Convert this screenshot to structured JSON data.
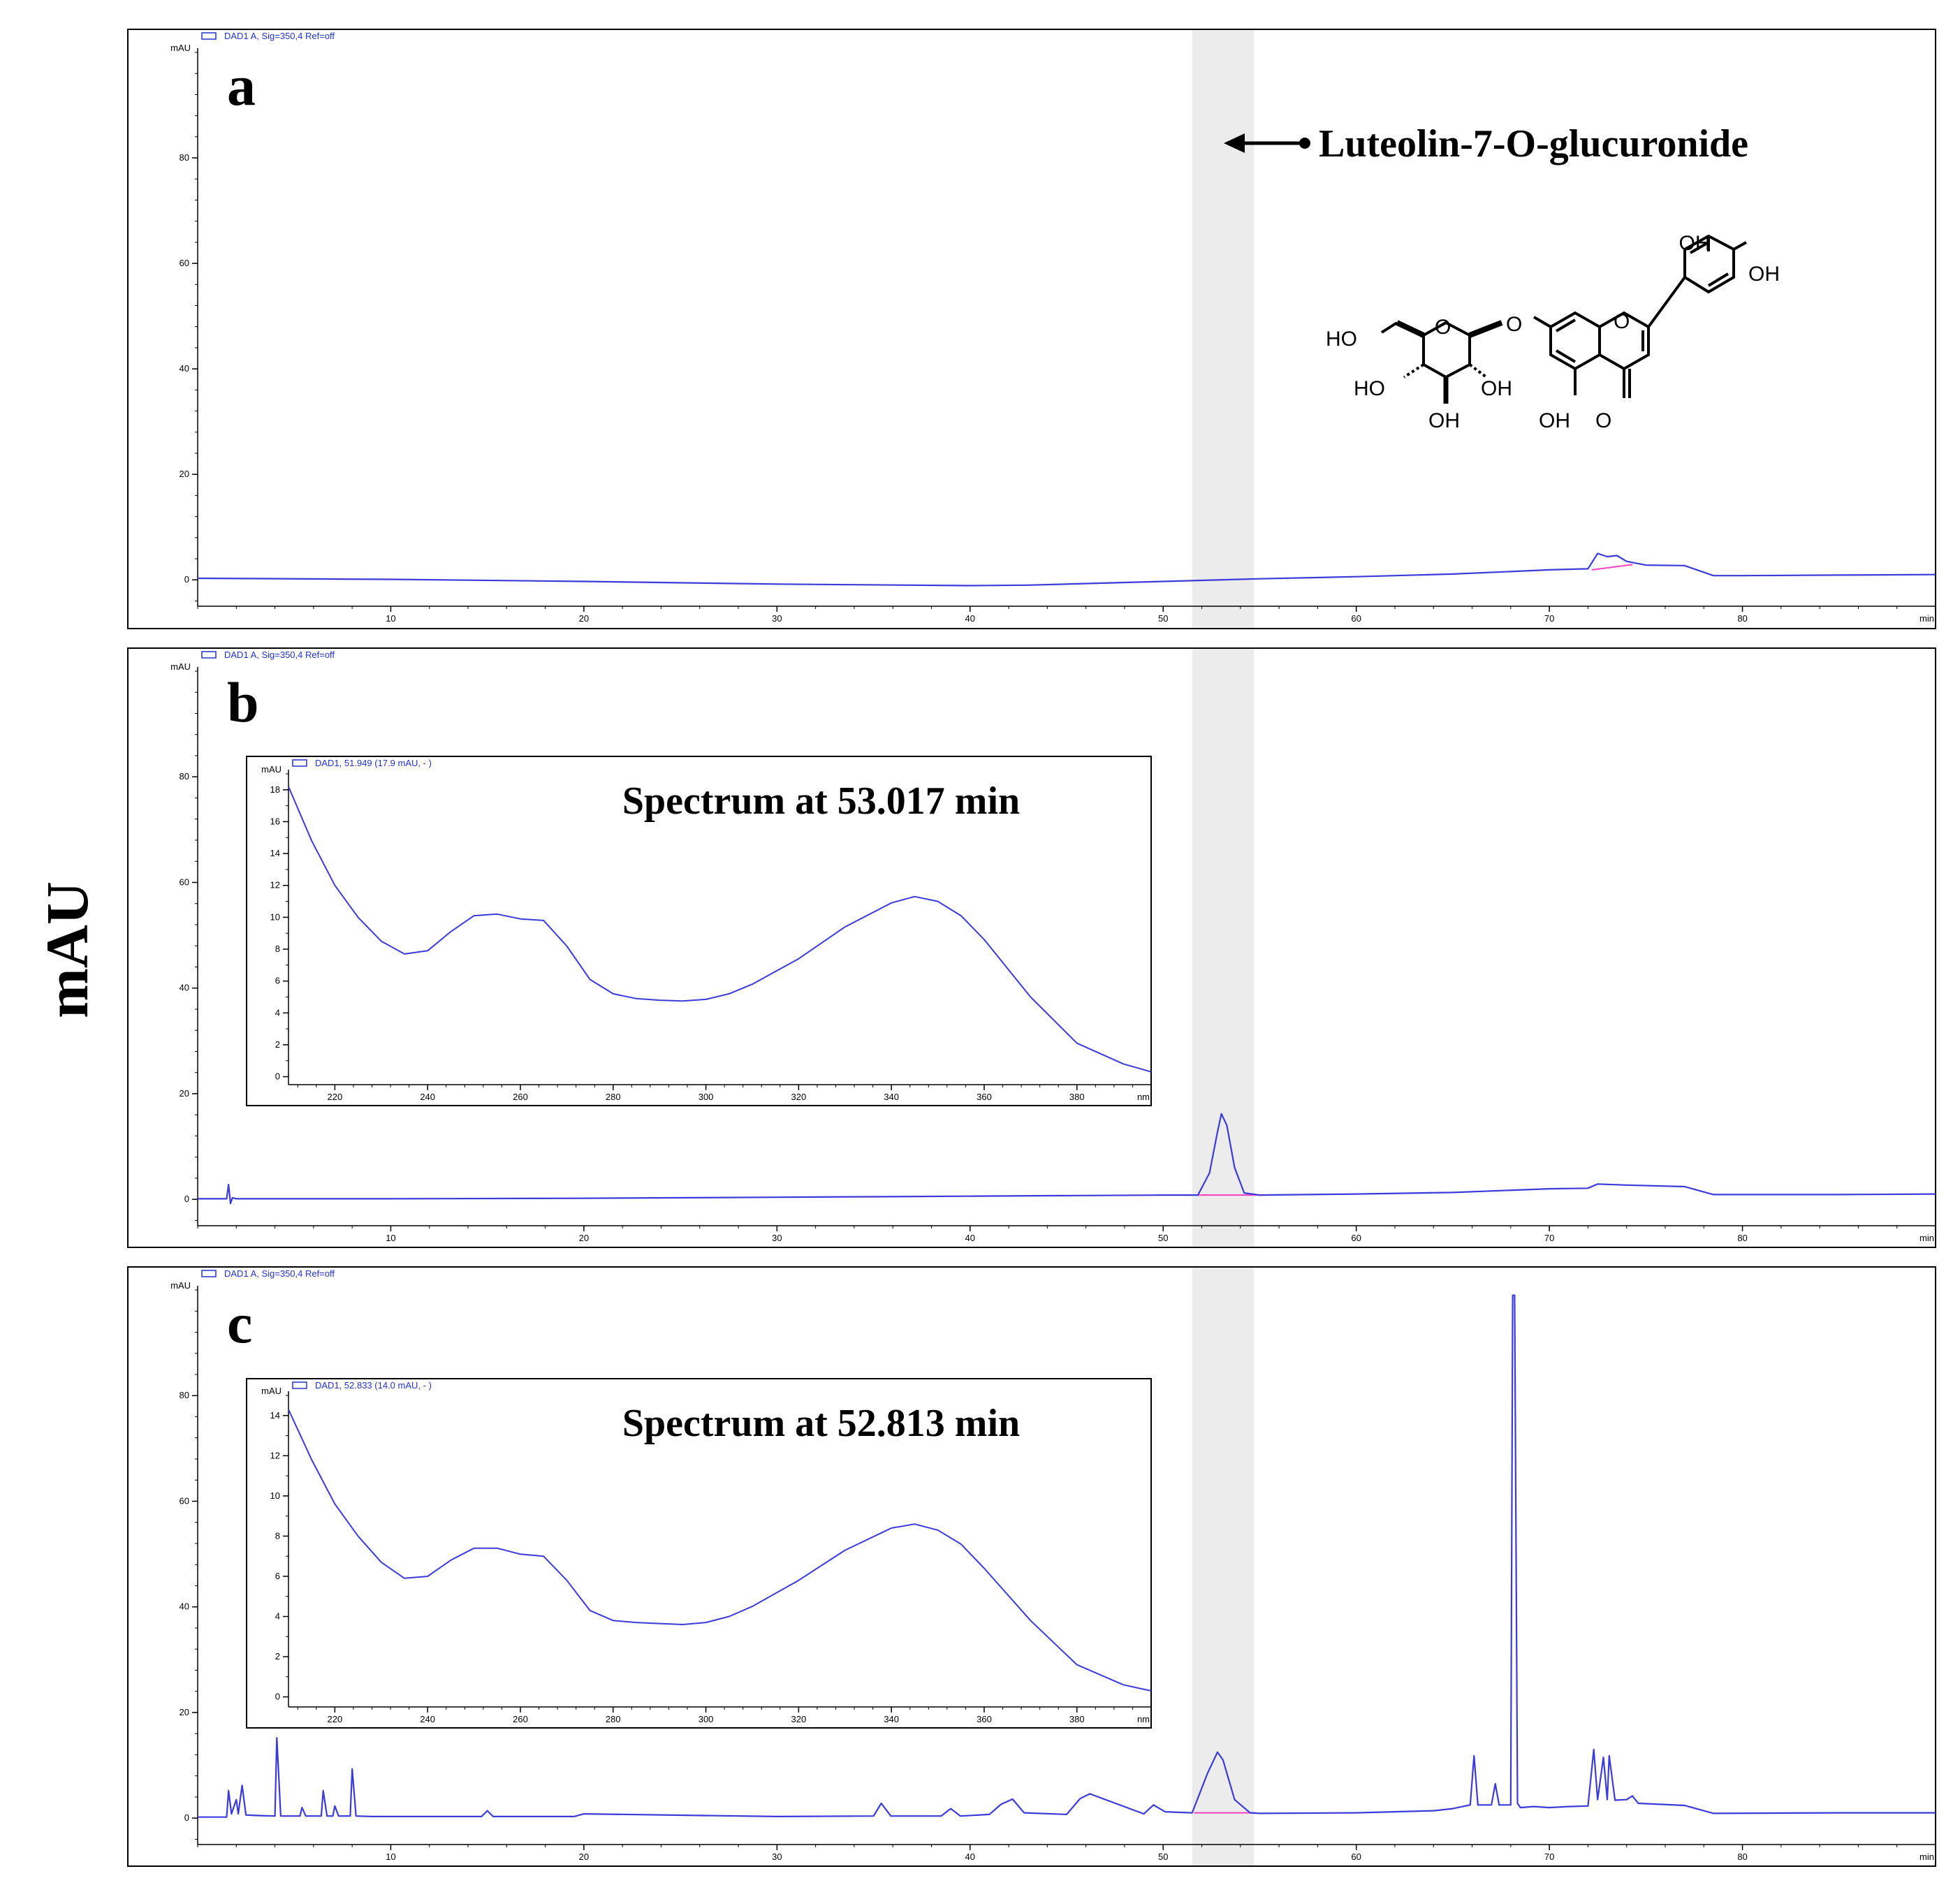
{
  "figure": {
    "y_axis_label": "mAU",
    "compound_label": "Luteolin-7-O-glucuronide",
    "structure_labels": [
      "OH",
      "OH",
      "HO",
      "O",
      "O",
      "O",
      "HO",
      "OH",
      "OH",
      "OH",
      "O"
    ],
    "colors": {
      "trace": "#3b3bdc",
      "header": "#2233cc",
      "baseline": "#ff3fbf",
      "highlight_band": "#ececec",
      "frame": "#000000"
    }
  },
  "chart_data": [
    {
      "type": "line",
      "panel": "a",
      "header": "DAD1 A, Sig=350,4 Ref=off",
      "ylabel": "mAU",
      "xlabel": "min",
      "xlim": [
        0,
        90
      ],
      "ylim": [
        -5,
        100
      ],
      "xticks": [
        10,
        20,
        30,
        40,
        50,
        60,
        70,
        80
      ],
      "yticks": [
        0,
        20,
        40,
        60,
        80
      ],
      "highlight_range": [
        51.5,
        54.7
      ],
      "series": [
        {
          "x": [
            0,
            10,
            20,
            30,
            40,
            43,
            50,
            55,
            60,
            65,
            70,
            72,
            72.5,
            73,
            73.5,
            74,
            75,
            77,
            78.5,
            80,
            85,
            90
          ],
          "y": [
            0.3,
            0.1,
            -0.3,
            -0.8,
            -1.1,
            -1.0,
            -0.3,
            0.2,
            0.6,
            1.1,
            1.9,
            2.1,
            5.0,
            4.4,
            4.6,
            3.5,
            2.8,
            2.7,
            0.8,
            0.8,
            0.9,
            1.0
          ]
        }
      ],
      "baseline_segments": [
        [
          72.2,
          1.9,
          74.3,
          2.9
        ]
      ]
    },
    {
      "type": "line",
      "panel": "b",
      "header": "DAD1 A, Sig=350,4 Ref=off",
      "ylabel": "mAU",
      "xlabel": "min",
      "xlim": [
        0,
        90
      ],
      "ylim": [
        -5,
        100
      ],
      "xticks": [
        10,
        20,
        30,
        40,
        50,
        60,
        70,
        80
      ],
      "yticks": [
        0,
        20,
        40,
        60,
        80
      ],
      "highlight_range": [
        51.5,
        54.7
      ],
      "series": [
        {
          "x": [
            0,
            1.5,
            1.6,
            1.7,
            1.8,
            2.0,
            5,
            10,
            20,
            30,
            40,
            50,
            51.8,
            52.4,
            52.8,
            53.017,
            53.3,
            53.7,
            54.2,
            55,
            60,
            65,
            70,
            72,
            72.5,
            74,
            77,
            78.5,
            85,
            90
          ],
          "y": [
            0.1,
            0.1,
            2.8,
            -0.8,
            0.3,
            0.1,
            0.1,
            0.1,
            0.2,
            0.4,
            0.6,
            0.8,
            0.8,
            5.0,
            12.5,
            16.2,
            14.0,
            6.0,
            1.2,
            0.8,
            1.0,
            1.3,
            2.0,
            2.1,
            2.9,
            2.7,
            2.4,
            0.9,
            0.9,
            1.0
          ]
        }
      ],
      "baseline_segments": [
        [
          51.8,
          0.8,
          55.2,
          0.8
        ]
      ]
    },
    {
      "type": "line",
      "panel": "c",
      "header": "DAD1 A, Sig=350,4 Ref=off",
      "ylabel": "mAU",
      "xlabel": "min",
      "xlim": [
        0,
        90
      ],
      "ylim": [
        -5,
        100
      ],
      "xticks": [
        10,
        20,
        30,
        40,
        50,
        60,
        70,
        80
      ],
      "yticks": [
        0,
        20,
        40,
        60,
        80
      ],
      "highlight_range": [
        51.5,
        54.7
      ],
      "series": [
        {
          "x": [
            0,
            1.5,
            1.6,
            1.75,
            2.0,
            2.1,
            2.3,
            2.5,
            3.0,
            4.0,
            4.1,
            4.3,
            5.3,
            5.4,
            5.6,
            6.4,
            6.5,
            6.7,
            7.0,
            7.1,
            7.3,
            7.9,
            8.0,
            8.2,
            9,
            14.7,
            15,
            15.3,
            19.5,
            20,
            30,
            35,
            35.4,
            35.9,
            38.5,
            39,
            39.5,
            41,
            41.6,
            42.2,
            42.8,
            45,
            45.7,
            46.2,
            49,
            49.5,
            50.1,
            51.5,
            52.3,
            52.813,
            53.1,
            53.7,
            54.5,
            55,
            60,
            64,
            65,
            65.9,
            66.1,
            66.3,
            67,
            67.2,
            67.4,
            68.0,
            68.1,
            68.2,
            68.35,
            68.5,
            69.2,
            70,
            71,
            72.0,
            72.3,
            72.5,
            72.8,
            73.0,
            73.1,
            73.4,
            74,
            74.3,
            74.6,
            77,
            78.5,
            85,
            90
          ],
          "y": [
            0.2,
            0.2,
            5.2,
            0.8,
            3.5,
            0.8,
            6.2,
            0.6,
            0.5,
            0.4,
            15.2,
            0.4,
            0.4,
            2.0,
            0.4,
            0.4,
            5.2,
            0.4,
            0.4,
            2.3,
            0.4,
            0.4,
            9.3,
            0.4,
            0.3,
            0.3,
            1.4,
            0.3,
            0.3,
            0.8,
            0.3,
            0.4,
            2.8,
            0.4,
            0.4,
            1.8,
            0.4,
            0.7,
            2.6,
            3.6,
            1.0,
            0.7,
            3.7,
            4.6,
            0.8,
            2.5,
            1.2,
            1.0,
            8.5,
            12.5,
            11.0,
            3.5,
            1.0,
            0.9,
            1.0,
            1.4,
            1.8,
            2.5,
            11.8,
            2.5,
            2.5,
            6.5,
            2.5,
            2.5,
            99.0,
            99.0,
            2.8,
            2.0,
            2.2,
            2.0,
            2.2,
            2.3,
            13.0,
            3.5,
            11.5,
            3.5,
            11.8,
            3.4,
            3.5,
            4.2,
            2.8,
            2.4,
            0.9,
            1.0,
            1.0
          ]
        }
      ],
      "baseline_segments": [
        [
          51.6,
          1.0,
          54.8,
          1.0
        ]
      ]
    },
    {
      "type": "line",
      "panel": "b-inset",
      "header": "DAD1, 51.949 (17.9 mAU, - )",
      "title": "Spectrum at 53.017 min",
      "ylabel": "mAU",
      "xlabel": "nm",
      "xlim": [
        210,
        396
      ],
      "ylim": [
        -0.5,
        19
      ],
      "xticks": [
        220,
        240,
        260,
        280,
        300,
        320,
        340,
        360,
        380
      ],
      "yticks": [
        0,
        2,
        4,
        6,
        8,
        10,
        12,
        14,
        16,
        18
      ],
      "series": [
        {
          "x": [
            210,
            215,
            220,
            225,
            230,
            235,
            240,
            245,
            250,
            255,
            260,
            265,
            270,
            275,
            280,
            285,
            290,
            295,
            300,
            305,
            310,
            320,
            330,
            340,
            345,
            350,
            355,
            360,
            370,
            380,
            390,
            396
          ],
          "y": [
            18.2,
            14.8,
            12.0,
            10.0,
            8.5,
            7.7,
            7.9,
            9.1,
            10.1,
            10.2,
            9.9,
            9.8,
            8.2,
            6.1,
            5.2,
            4.9,
            4.8,
            4.75,
            4.85,
            5.2,
            5.8,
            7.4,
            9.4,
            10.9,
            11.3,
            11.0,
            10.1,
            8.6,
            5.0,
            2.1,
            0.8,
            0.3
          ]
        }
      ]
    },
    {
      "type": "line",
      "panel": "c-inset",
      "header": "DAD1, 52.833 (14.0 mAU, - )",
      "title": "Spectrum at 52.813 min",
      "ylabel": "mAU",
      "xlabel": "nm",
      "xlim": [
        210,
        396
      ],
      "ylim": [
        -0.5,
        15
      ],
      "xticks": [
        220,
        240,
        260,
        280,
        300,
        320,
        340,
        360,
        380
      ],
      "yticks": [
        0,
        2,
        4,
        6,
        8,
        10,
        12,
        14
      ],
      "series": [
        {
          "x": [
            210,
            215,
            220,
            225,
            230,
            235,
            240,
            245,
            250,
            255,
            260,
            265,
            270,
            275,
            280,
            285,
            290,
            295,
            300,
            305,
            310,
            320,
            330,
            340,
            345,
            350,
            355,
            360,
            370,
            380,
            390,
            396
          ],
          "y": [
            14.3,
            11.8,
            9.6,
            8.0,
            6.7,
            5.9,
            6.0,
            6.8,
            7.4,
            7.4,
            7.1,
            7.0,
            5.8,
            4.3,
            3.8,
            3.7,
            3.65,
            3.6,
            3.7,
            4.0,
            4.5,
            5.8,
            7.3,
            8.4,
            8.6,
            8.3,
            7.6,
            6.4,
            3.8,
            1.6,
            0.6,
            0.3
          ]
        }
      ]
    }
  ]
}
